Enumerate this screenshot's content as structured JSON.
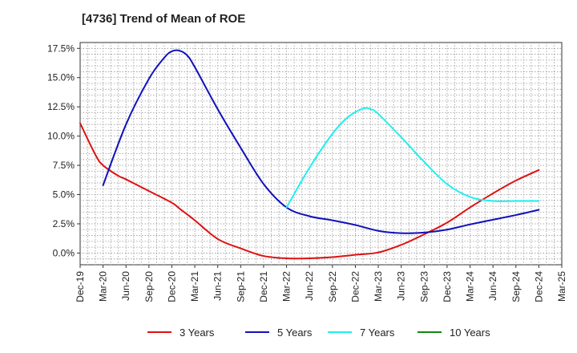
{
  "title": "[4736]  Trend of Mean of ROE",
  "chart_data": {
    "type": "line",
    "title": "[4736]  Trend of Mean of ROE",
    "xlabel": "",
    "ylabel": "",
    "ylim": [
      -1.0,
      18.0
    ],
    "y_ticks": [
      {
        "value": 0.0,
        "label": "0.0%"
      },
      {
        "value": 2.5,
        "label": "2.5%"
      },
      {
        "value": 5.0,
        "label": "5.0%"
      },
      {
        "value": 7.5,
        "label": "7.5%"
      },
      {
        "value": 10.0,
        "label": "10.0%"
      },
      {
        "value": 12.5,
        "label": "12.5%"
      },
      {
        "value": 15.0,
        "label": "15.0%"
      },
      {
        "value": 17.5,
        "label": "17.5%"
      }
    ],
    "x_tick_labels": [
      "Dec-19",
      "Mar-20",
      "Jun-20",
      "Sep-20",
      "Dec-20",
      "Mar-21",
      "Jun-21",
      "Sep-21",
      "Dec-21",
      "Mar-22",
      "Jun-22",
      "Sep-22",
      "Dec-22",
      "Mar-23",
      "Jun-23",
      "Sep-23",
      "Dec-23",
      "Mar-24",
      "Jun-24",
      "Sep-24",
      "Dec-24",
      "Mar-25"
    ],
    "grid": true,
    "legend_position": "bottom",
    "series": [
      {
        "name": "3 Years",
        "color": "#dd1111",
        "points": [
          {
            "x": "Dec-19",
            "y": 11.1
          },
          {
            "x": "Feb-20",
            "y": 8.4
          },
          {
            "x": "Mar-20",
            "y": 7.5
          },
          {
            "x": "May-20",
            "y": 6.6
          },
          {
            "x": "Jun-20",
            "y": 6.3
          },
          {
            "x": "Sep-20",
            "y": 5.3
          },
          {
            "x": "Dec-20",
            "y": 4.3
          },
          {
            "x": "Jan-21",
            "y": 3.8
          },
          {
            "x": "Mar-21",
            "y": 2.8
          },
          {
            "x": "Jun-21",
            "y": 1.2
          },
          {
            "x": "Sep-21",
            "y": 0.4
          },
          {
            "x": "Dec-21",
            "y": -0.25
          },
          {
            "x": "Mar-22",
            "y": -0.45
          },
          {
            "x": "Jun-22",
            "y": -0.45
          },
          {
            "x": "Sep-22",
            "y": -0.35
          },
          {
            "x": "Dec-22",
            "y": -0.15
          },
          {
            "x": "Mar-23",
            "y": 0.05
          },
          {
            "x": "Jun-23",
            "y": 0.7
          },
          {
            "x": "Sep-23",
            "y": 1.6
          },
          {
            "x": "Dec-23",
            "y": 2.6
          },
          {
            "x": "Mar-24",
            "y": 3.9
          },
          {
            "x": "Jun-24",
            "y": 5.1
          },
          {
            "x": "Sep-24",
            "y": 6.2
          },
          {
            "x": "Dec-24",
            "y": 7.1
          }
        ]
      },
      {
        "name": "5 Years",
        "color": "#1111bb",
        "points": [
          {
            "x": "Mar-20",
            "y": 5.8
          },
          {
            "x": "Jun-20",
            "y": 11.0
          },
          {
            "x": "Sep-20",
            "y": 14.9
          },
          {
            "x": "Nov-20",
            "y": 16.7
          },
          {
            "x": "Dec-20",
            "y": 17.25
          },
          {
            "x": "Jan-21",
            "y": 17.3
          },
          {
            "x": "Feb-21",
            "y": 16.9
          },
          {
            "x": "Mar-21",
            "y": 15.9
          },
          {
            "x": "Jun-21",
            "y": 12.3
          },
          {
            "x": "Sep-21",
            "y": 9.0
          },
          {
            "x": "Dec-21",
            "y": 5.9
          },
          {
            "x": "Mar-22",
            "y": 3.9
          },
          {
            "x": "Jun-22",
            "y": 3.15
          },
          {
            "x": "Sep-22",
            "y": 2.8
          },
          {
            "x": "Dec-22",
            "y": 2.4
          },
          {
            "x": "Mar-23",
            "y": 1.9
          },
          {
            "x": "Jun-23",
            "y": 1.7
          },
          {
            "x": "Sep-23",
            "y": 1.75
          },
          {
            "x": "Dec-23",
            "y": 2.0
          },
          {
            "x": "Mar-24",
            "y": 2.45
          },
          {
            "x": "Jun-24",
            "y": 2.85
          },
          {
            "x": "Sep-24",
            "y": 3.25
          },
          {
            "x": "Dec-24",
            "y": 3.7
          }
        ]
      },
      {
        "name": "7 Years",
        "color": "#22eeee",
        "points": [
          {
            "x": "Mar-22",
            "y": 3.9
          },
          {
            "x": "Jun-22",
            "y": 7.3
          },
          {
            "x": "Sep-22",
            "y": 10.2
          },
          {
            "x": "Nov-22",
            "y": 11.6
          },
          {
            "x": "Jan-23",
            "y": 12.35
          },
          {
            "x": "Feb-23",
            "y": 12.3
          },
          {
            "x": "Mar-23",
            "y": 11.9
          },
          {
            "x": "Jun-23",
            "y": 9.9
          },
          {
            "x": "Sep-23",
            "y": 7.8
          },
          {
            "x": "Dec-23",
            "y": 5.9
          },
          {
            "x": "Mar-24",
            "y": 4.8
          },
          {
            "x": "Jun-24",
            "y": 4.45
          },
          {
            "x": "Sep-24",
            "y": 4.45
          },
          {
            "x": "Dec-24",
            "y": 4.45
          }
        ]
      },
      {
        "name": "10 Years",
        "color": "#118811",
        "points": []
      }
    ]
  }
}
